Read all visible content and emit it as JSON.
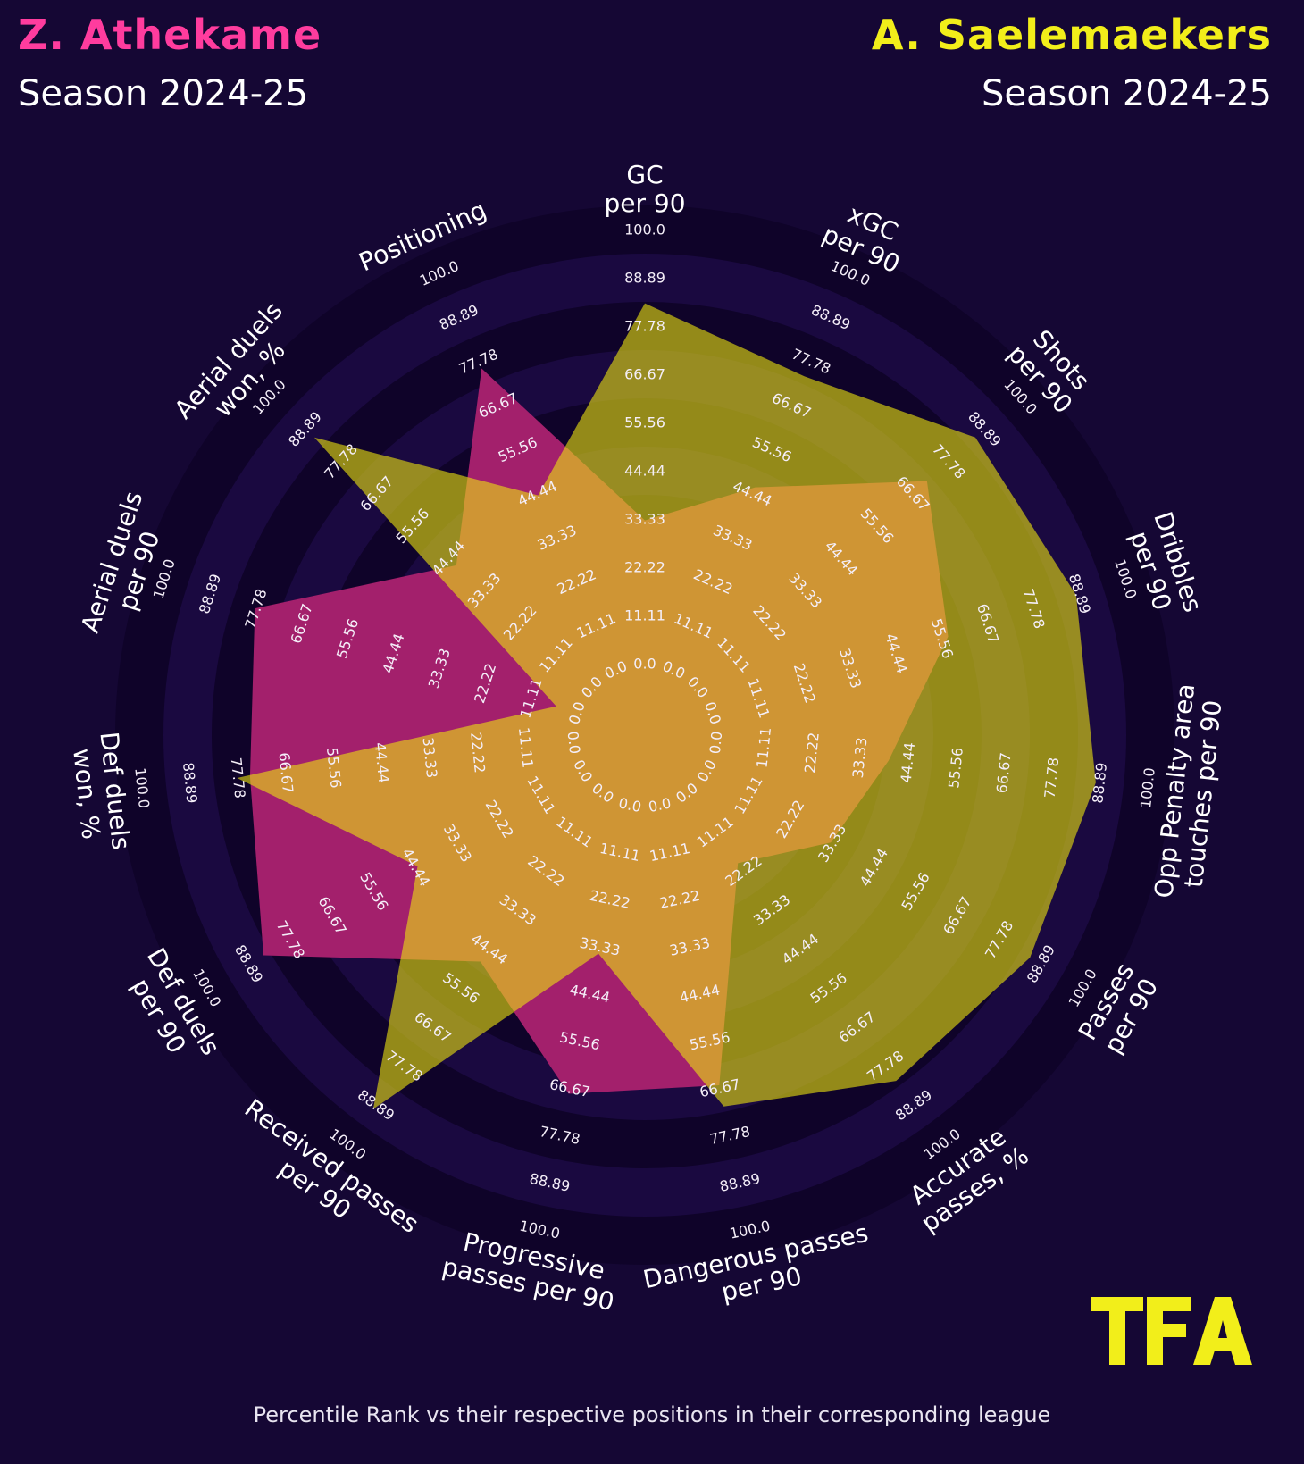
{
  "header": {
    "player_left": "Z. Athekame",
    "player_right": "A. Saelemaekers",
    "season_left": "Season 2024-25",
    "season_right": "Season 2024-25"
  },
  "footer": "Percentile Rank vs their respective positions in their corresponding league",
  "logo_text": "TFA",
  "colors": {
    "background": "#150734",
    "player_left": "#ff3c9e",
    "player_right": "#f2ee1a",
    "fill_left": "#a3206c",
    "fill_right": "rgba(236,229,15,0.6)",
    "ring_dark": "#0f0329",
    "ring_light": "#1a0940"
  },
  "chart_data": {
    "type": "radar",
    "title": "",
    "axes": [
      [
        "GC",
        "per 90"
      ],
      [
        "xGC",
        "per 90"
      ],
      [
        "Shots",
        "per 90"
      ],
      [
        "Dribbles",
        "per 90"
      ],
      [
        "Opp Penalty area",
        "touches per 90"
      ],
      [
        "Passes",
        "per 90"
      ],
      [
        "Accurate",
        "passes, %"
      ],
      [
        "Dangerous passes",
        "per 90"
      ],
      [
        "Progressive",
        "passes per 90"
      ],
      [
        "Received passes",
        "per 90"
      ],
      [
        "Def duels",
        "per 90"
      ],
      [
        "Def duels",
        "won, %"
      ],
      [
        "Aerial duels",
        "per 90"
      ],
      [
        "Aerial duels",
        "won, %"
      ],
      [
        "Positioning"
      ]
    ],
    "range": [
      0,
      100
    ],
    "tick_labels": [
      "0.0",
      "11.11",
      "22.22",
      "33.33",
      "44.44",
      "55.56",
      "66.67",
      "77.78",
      "88.89",
      "100.0"
    ],
    "series": [
      {
        "name": "Z. Athekame",
        "values": [
          33,
          46,
          71,
          57,
          40,
          33,
          20,
          66,
          68,
          48,
          85,
          75,
          78,
          42,
          76
        ]
      },
      {
        "name": "A. Saelemaekers",
        "values": [
          83,
          74,
          86,
          88,
          88,
          86,
          82,
          71,
          35,
          90,
          44,
          78,
          5,
          86,
          44
        ]
      }
    ]
  }
}
